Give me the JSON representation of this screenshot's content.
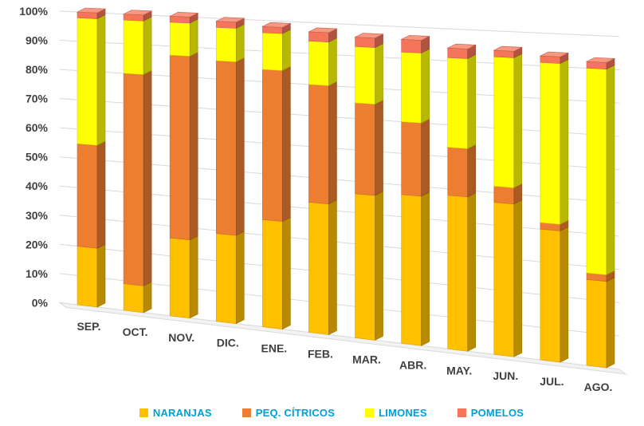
{
  "chart_data": {
    "type": "bar",
    "stacked": true,
    "percent": true,
    "title": "",
    "xlabel": "",
    "ylabel": "",
    "ylim": [
      0,
      100
    ],
    "y_ticks": [
      "0%",
      "10%",
      "20%",
      "30%",
      "40%",
      "50%",
      "60%",
      "70%",
      "80%",
      "90%",
      "100%"
    ],
    "categories": [
      "SEP.",
      "OCT.",
      "NOV.",
      "DIC.",
      "ENE.",
      "FEB.",
      "MAR.",
      "ABR.",
      "MAY.",
      "JUN.",
      "JUL.",
      "AGO."
    ],
    "series": [
      {
        "name": "NARANJAS",
        "color": "#ffc000",
        "values": [
          20,
          9,
          26,
          29,
          35,
          42,
          46,
          47,
          48,
          47,
          40,
          26
        ]
      },
      {
        "name": "PEQ. CÍTRICOS",
        "color": "#ed7d31",
        "values": [
          35,
          71,
          61,
          57,
          49,
          38,
          29,
          23,
          15,
          5,
          2,
          2
        ]
      },
      {
        "name": "LIMONES",
        "color": "#ffff00",
        "values": [
          43,
          18,
          11,
          11,
          12,
          14,
          18,
          22,
          28,
          40,
          49,
          62
        ]
      },
      {
        "name": "POMELOS",
        "color": "#f4755a",
        "values": [
          2,
          2,
          2,
          2,
          2,
          3,
          3,
          4,
          3,
          2,
          2,
          2
        ]
      }
    ],
    "grid": true,
    "legend_position": "bottom"
  }
}
